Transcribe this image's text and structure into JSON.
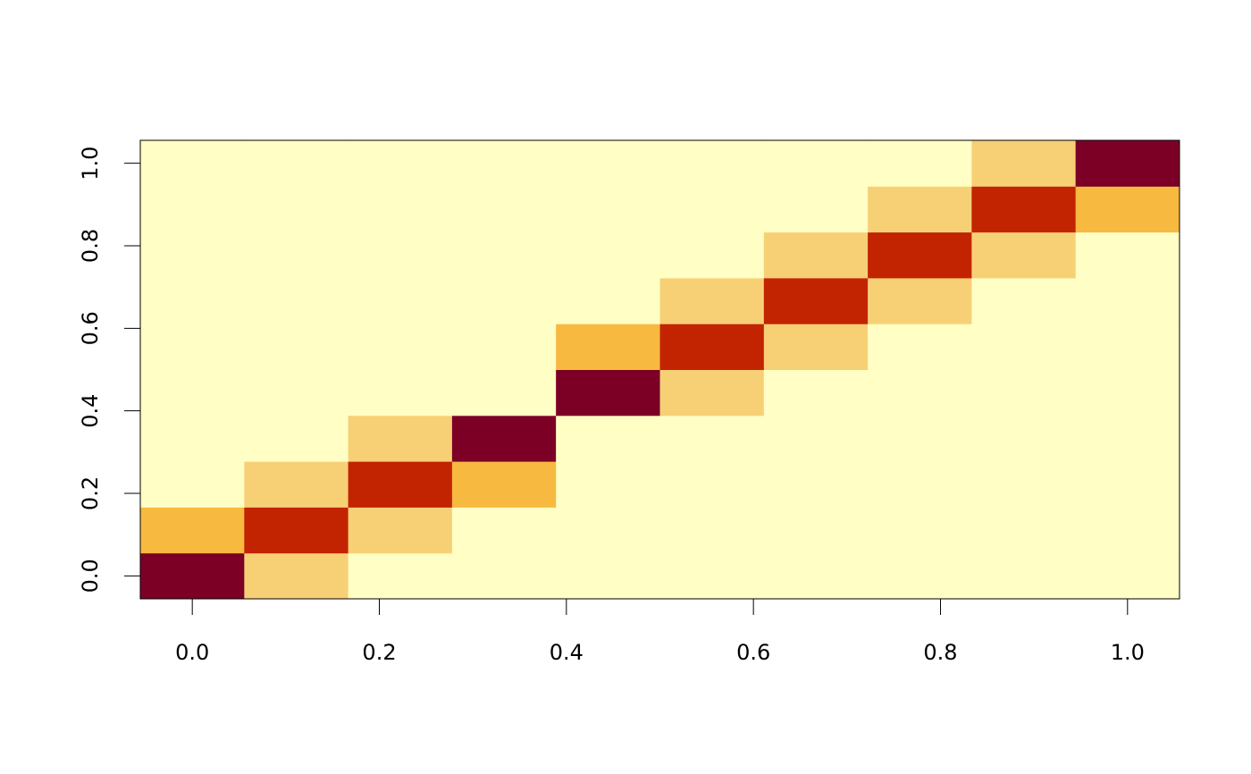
{
  "chart_data": {
    "type": "heatmap",
    "title": "",
    "xlabel": "",
    "ylabel": "",
    "x": [
      0,
      0.1111,
      0.2222,
      0.3333,
      0.4444,
      0.5556,
      0.6667,
      0.7778,
      0.8889,
      1.0
    ],
    "y": [
      0,
      0.1111,
      0.2222,
      0.3333,
      0.4444,
      0.5556,
      0.6667,
      0.7778,
      0.8889,
      1.0
    ],
    "xlim": [
      -0.0556,
      1.0556
    ],
    "ylim": [
      -0.0556,
      1.0556
    ],
    "xticks": [
      "0.0",
      "0.2",
      "0.4",
      "0.6",
      "0.8",
      "1.0"
    ],
    "yticks": [
      "0.0",
      "0.2",
      "0.4",
      "0.6",
      "0.8",
      "1.0"
    ],
    "colors": [
      "#fefec5",
      "#f7d076",
      "#f7b940",
      "#c22300",
      "#7c0026"
    ],
    "z_rows_bottom_to_top": [
      [
        4,
        1,
        0,
        0,
        0,
        0,
        0,
        0,
        0,
        0
      ],
      [
        2,
        3,
        1,
        0,
        0,
        0,
        0,
        0,
        0,
        0
      ],
      [
        0,
        1,
        3,
        2,
        0,
        0,
        0,
        0,
        0,
        0
      ],
      [
        0,
        0,
        1,
        4,
        0,
        0,
        0,
        0,
        0,
        0
      ],
      [
        0,
        0,
        0,
        0,
        4,
        1,
        0,
        0,
        0,
        0
      ],
      [
        0,
        0,
        0,
        0,
        2,
        3,
        1,
        0,
        0,
        0
      ],
      [
        0,
        0,
        0,
        0,
        0,
        1,
        3,
        1,
        0,
        0
      ],
      [
        0,
        0,
        0,
        0,
        0,
        0,
        1,
        3,
        1,
        0
      ],
      [
        0,
        0,
        0,
        0,
        0,
        0,
        0,
        1,
        3,
        2
      ],
      [
        0,
        0,
        0,
        0,
        0,
        0,
        0,
        0,
        1,
        4
      ]
    ],
    "grid": false,
    "legend": "none"
  }
}
